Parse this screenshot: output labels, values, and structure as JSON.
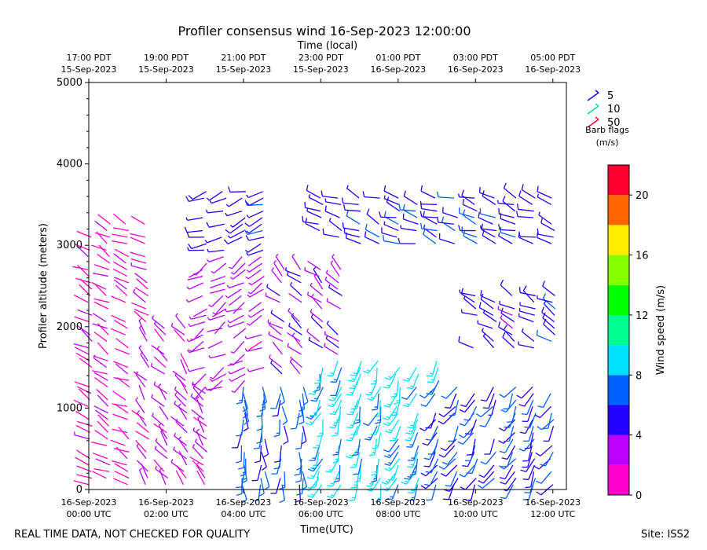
{
  "chart_data": {
    "type": "wind-barb-time-height",
    "title": "Profiler consensus wind 16-Sep-2023 12:00:00",
    "top_axis_label": "Time (local)",
    "xlabel": "Time(UTC)",
    "ylabel": "Profiler altitude (meters)",
    "x_range_hours_utc": [
      0,
      12.35
    ],
    "ylim": [
      0,
      5000
    ],
    "y_ticks": [
      0,
      1000,
      2000,
      3000,
      4000,
      5000
    ],
    "bottom_ticks": [
      {
        "hour": 0,
        "line1": "16-Sep-2023",
        "line2": "00:00 UTC"
      },
      {
        "hour": 2,
        "line1": "16-Sep-2023",
        "line2": "02:00 UTC"
      },
      {
        "hour": 4,
        "line1": "16-Sep-2023",
        "line2": "04:00 UTC"
      },
      {
        "hour": 6,
        "line1": "16-Sep-2023",
        "line2": "06:00 UTC"
      },
      {
        "hour": 8,
        "line1": "16-Sep-2023",
        "line2": "08:00 UTC"
      },
      {
        "hour": 10,
        "line1": "16-Sep-2023",
        "line2": "10:00 UTC"
      },
      {
        "hour": 12,
        "line1": "16-Sep-2023",
        "line2": "12:00 UTC"
      }
    ],
    "top_ticks": [
      {
        "hour": 0,
        "line1": "17:00 PDT",
        "line2": "15-Sep-2023"
      },
      {
        "hour": 2,
        "line1": "19:00 PDT",
        "line2": "15-Sep-2023"
      },
      {
        "hour": 4,
        "line1": "21:00 PDT",
        "line2": "15-Sep-2023"
      },
      {
        "hour": 6,
        "line1": "23:00 PDT",
        "line2": "15-Sep-2023"
      },
      {
        "hour": 8,
        "line1": "01:00 PDT",
        "line2": "16-Sep-2023"
      },
      {
        "hour": 10,
        "line1": "03:00 PDT",
        "line2": "16-Sep-2023"
      },
      {
        "hour": 12,
        "line1": "05:00 PDT",
        "line2": "16-Sep-2023"
      }
    ],
    "legend": {
      "entries": [
        {
          "label": "5",
          "color": "#2000e0"
        },
        {
          "label": "10",
          "color": "#00e0a0"
        },
        {
          "label": "50",
          "color": "#ff0030"
        }
      ],
      "title_line1": "Barb flags",
      "title_line2": "(m/s)"
    },
    "colorbar": {
      "label": "Wind speed (m/s)",
      "min": 0,
      "max": 22,
      "ticks": [
        0,
        4,
        8,
        12,
        16,
        20
      ],
      "bins": [
        {
          "from": 0,
          "to": 2,
          "color": "#ff00cc"
        },
        {
          "from": 2,
          "to": 4,
          "color": "#bb00ff"
        },
        {
          "from": 4,
          "to": 6,
          "color": "#2200ff"
        },
        {
          "from": 6,
          "to": 8,
          "color": "#0060ff"
        },
        {
          "from": 8,
          "to": 10,
          "color": "#00e0ff"
        },
        {
          "from": 10,
          "to": 12,
          "color": "#00ff90"
        },
        {
          "from": 12,
          "to": 14,
          "color": "#00ff00"
        },
        {
          "from": 14,
          "to": 16,
          "color": "#88ff00"
        },
        {
          "from": 16,
          "to": 18,
          "color": "#ffee00"
        },
        {
          "from": 18,
          "to": 20,
          "color": "#ff6600"
        },
        {
          "from": 20,
          "to": 22,
          "color": "#ff0033"
        }
      ]
    },
    "profile_times_hours": [
      0.03,
      0.5,
      1.0,
      1.5,
      2.0,
      2.5,
      3.0,
      3.5,
      4.0,
      4.5,
      5.0,
      5.5,
      6.0,
      6.5,
      7.0,
      7.5,
      8.0,
      8.5,
      9.0,
      9.5,
      10.0,
      10.5,
      11.0,
      11.5,
      12.0
    ],
    "wind_regions": [
      {
        "t_from": 0,
        "t_to": 1.5,
        "z_from": 0,
        "z_to": 3300,
        "speed": 1.5,
        "dir_deg": 300
      },
      {
        "t_from": 1.5,
        "t_to": 3.0,
        "z_from": 0,
        "z_to": 2000,
        "speed": 2.5,
        "dir_deg": 320
      },
      {
        "t_from": 3.0,
        "t_to": 4.5,
        "z_from": 1200,
        "z_to": 3000,
        "speed": 3.0,
        "dir_deg": 240
      },
      {
        "t_from": 3.0,
        "t_to": 4.5,
        "z_from": 2900,
        "z_to": 3700,
        "speed": 5.0,
        "dir_deg": 250
      },
      {
        "t_from": 4.0,
        "t_to": 6.0,
        "z_from": 0,
        "z_to": 1300,
        "speed": 6.5,
        "dir_deg": 180
      },
      {
        "t_from": 5.0,
        "t_to": 6.5,
        "z_from": 1400,
        "z_to": 2700,
        "speed": 3.5,
        "dir_deg": 310
      },
      {
        "t_from": 6.0,
        "t_to": 9.0,
        "z_from": 0,
        "z_to": 1600,
        "speed": 8.5,
        "dir_deg": 200
      },
      {
        "t_from": 6.0,
        "t_to": 12.0,
        "z_from": 3000,
        "z_to": 3600,
        "speed": 5.5,
        "dir_deg": 290
      },
      {
        "t_from": 9.0,
        "t_to": 12.0,
        "z_from": 0,
        "z_to": 1300,
        "speed": 6.0,
        "dir_deg": 210
      },
      {
        "t_from": 10.0,
        "t_to": 12.0,
        "z_from": 1700,
        "z_to": 2400,
        "speed": 5.0,
        "dir_deg": 300
      }
    ]
  },
  "footer": {
    "left": "REAL TIME DATA, NOT CHECKED FOR QUALITY",
    "right": "Site: ISS2"
  }
}
